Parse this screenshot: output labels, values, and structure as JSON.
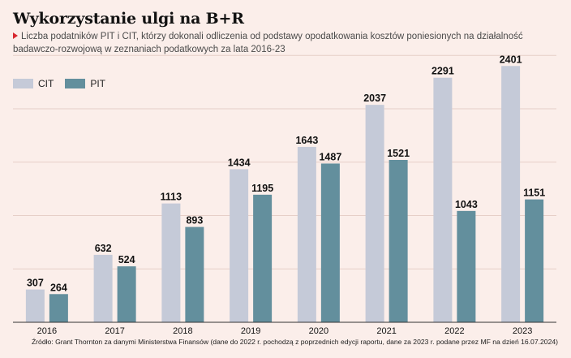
{
  "header": {
    "title": "Wykorzystanie ulgi na B+R",
    "subtitle": "Liczba podatników PIT i CIT, którzy dokonali odliczenia od podstawy opodatkowania kosztów poniesionych na działalność badawczo-rozwojową w zeznaniach podatkowych za lata 2016-23"
  },
  "legend": {
    "cit_label": "CIT",
    "pit_label": "PIT"
  },
  "source": "Źródło: Grant Thornton za danymi Ministerstwa Finansów (dane do 2022 r. pochodzą z poprzednich edycji raportu, dane za 2023 r. podane przez MF na dzień 16.07.2024)",
  "colors": {
    "background": "#fbeeea",
    "cit": "#c5cad8",
    "pit": "#638f9d",
    "accent": "#d7262e",
    "gridline": "#e6cfc8"
  },
  "chart_data": {
    "type": "bar",
    "title": "Wykorzystanie ulgi na B+R",
    "categories": [
      "2016",
      "2017",
      "2018",
      "2019",
      "2020",
      "2021",
      "2022",
      "2023"
    ],
    "series": [
      {
        "name": "CIT",
        "values": [
          307,
          632,
          1113,
          1434,
          1643,
          2037,
          2291,
          2401
        ]
      },
      {
        "name": "PIT",
        "values": [
          264,
          524,
          893,
          1195,
          1487,
          1521,
          1043,
          1151
        ]
      }
    ],
    "ylim": [
      0,
      2500
    ],
    "grid": true,
    "legend_position": "top-left",
    "data_labels": true
  }
}
